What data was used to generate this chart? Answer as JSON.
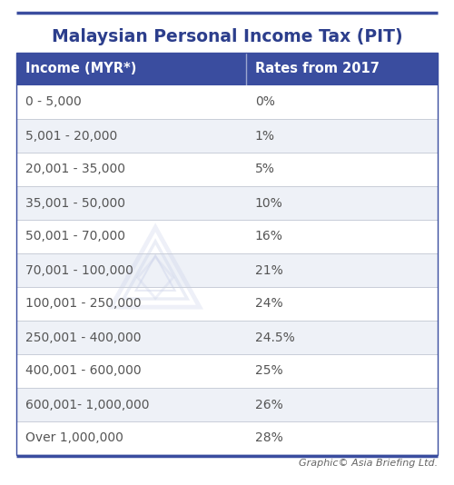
{
  "title": "Malaysian Personal Income Tax (PIT)",
  "header": [
    "Income (MYR*)",
    "Rates from 2017"
  ],
  "rows": [
    [
      "0 - 5,000",
      "0%"
    ],
    [
      "5,001 - 20,000",
      "1%"
    ],
    [
      "20,001 - 35,000",
      "5%"
    ],
    [
      "35,001 - 50,000",
      "10%"
    ],
    [
      "50,001 - 70,000",
      "16%"
    ],
    [
      "70,001 - 100,000",
      "21%"
    ],
    [
      "100,001 - 250,000",
      "24%"
    ],
    [
      "250,001 - 400,000",
      "24.5%"
    ],
    [
      "400,001 - 600,000",
      "25%"
    ],
    [
      "600,001- 1,000,000",
      "26%"
    ],
    [
      "Over 1,000,000",
      "28%"
    ]
  ],
  "header_bg": "#3a4d9f",
  "header_text_color": "#ffffff",
  "row_bg_even": "#eef1f7",
  "row_bg_odd": "#ffffff",
  "row_text_color": "#555555",
  "title_color": "#2c3e8c",
  "footer_text": "Graphic© Asia Briefing Ltd.",
  "col_split": 0.545,
  "bg_color": "#ffffff",
  "border_color": "#3a4d9f",
  "separator_color": "#c8cdd8",
  "title_fontsize": 13.5,
  "header_fontsize": 10.5,
  "row_fontsize": 10,
  "footer_fontsize": 8
}
